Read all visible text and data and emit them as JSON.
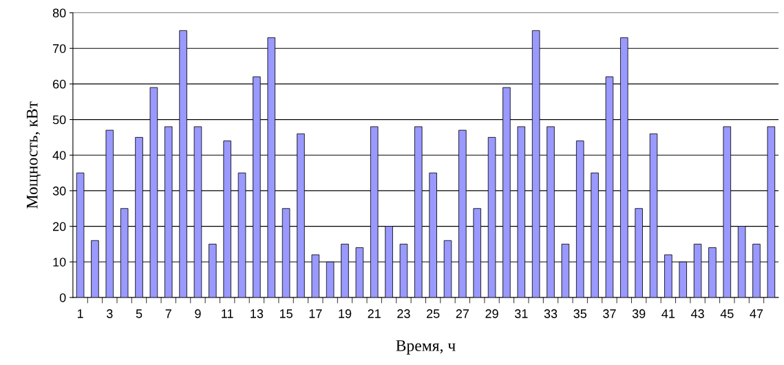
{
  "chart_data": {
    "type": "bar",
    "xlabel": "Время, ч",
    "ylabel": "Мощность, кВт",
    "categories": [
      "1",
      null,
      "3",
      null,
      "5",
      null,
      "7",
      null,
      "9",
      null,
      "11",
      null,
      "13",
      null,
      "15",
      null,
      "17",
      null,
      "19",
      null,
      "21",
      null,
      "23",
      null,
      "25",
      null,
      "27",
      null,
      "29",
      null,
      "31",
      null,
      "33",
      null,
      "35",
      null,
      "37",
      null,
      "39",
      null,
      "41",
      null,
      "43",
      null,
      "45",
      null,
      "47",
      null
    ],
    "values": [
      35,
      16,
      47,
      25,
      45,
      59,
      48,
      75,
      48,
      15,
      44,
      35,
      62,
      73,
      25,
      46,
      12,
      10,
      15,
      14,
      48,
      20,
      15,
      48,
      35,
      16,
      47,
      25,
      45,
      59,
      48,
      75,
      48,
      15,
      44,
      35,
      62,
      73,
      25,
      46,
      12,
      10,
      15,
      14,
      48,
      20,
      15,
      48
    ],
    "color": "#9999ff",
    "ylim": [
      0,
      80
    ],
    "yticks": [
      0,
      10,
      20,
      30,
      40,
      50,
      60,
      70,
      80
    ],
    "grid": "y",
    "legend": false
  }
}
